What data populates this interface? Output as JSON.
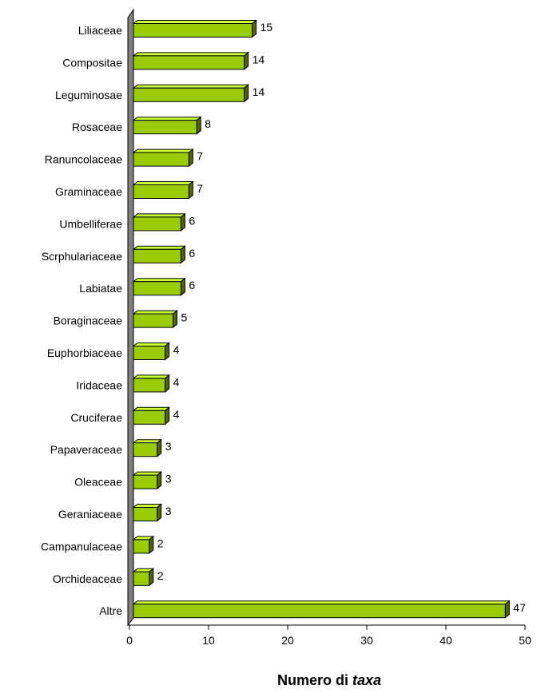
{
  "chart_data": {
    "type": "bar",
    "orientation": "horizontal",
    "style": "3d",
    "categories": [
      "Liliaceae",
      "Compositae",
      "Leguminosae",
      "Rosaceae",
      "Ranuncolaceae",
      "Graminaceae",
      "Umbelliferae",
      "Scrphulariaceae",
      "Labiatae",
      "Boraginaceae",
      "Euphorbiaceae",
      "Iridaceae",
      "Cruciferae",
      "Papaveraceae",
      "Oleaceae",
      "Geraniaceae",
      "Campanulaceae",
      "Orchideaceae",
      "Altre"
    ],
    "values": [
      15,
      14,
      14,
      8,
      7,
      7,
      6,
      6,
      6,
      5,
      4,
      4,
      4,
      3,
      3,
      3,
      2,
      2,
      47
    ],
    "xlabel_prefix": "Numero di ",
    "xlabel_italic": "taxa",
    "xlim": [
      0,
      50
    ],
    "xticks": [
      0,
      10,
      20,
      30,
      40,
      50
    ],
    "grid": false,
    "legend": "none",
    "colors": {
      "bar_front": "#99cc00",
      "bar_top": "#ccff33",
      "bar_side": "#4d6600",
      "bar_outline": "#000000",
      "wall": "#808080"
    }
  }
}
